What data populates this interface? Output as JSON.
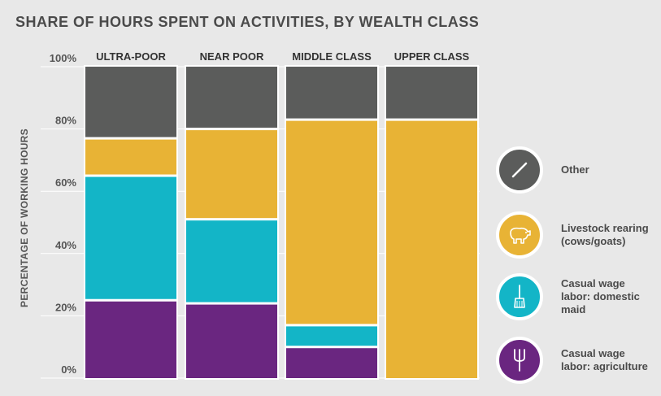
{
  "title": "SHARE OF HOURS SPENT ON ACTIVITIES, BY WEALTH CLASS",
  "colors": {
    "other": "#5b5c5b",
    "livestock": "#e8b335",
    "domestic": "#13b5c7",
    "agriculture": "#6a2680",
    "grid": "#ffffff"
  },
  "chart_data": {
    "type": "bar",
    "stacked": true,
    "categories": [
      "ULTRA-POOR",
      "NEAR POOR",
      "MIDDLE CLASS",
      "UPPER CLASS"
    ],
    "ylabel": "PERCENTAGE OF WORKING HOURS",
    "ylim": [
      0,
      100
    ],
    "yticks": [
      "0%",
      "20%",
      "40%",
      "60%",
      "80%",
      "100%"
    ],
    "series": [
      {
        "name": "Casual wage labor: agriculture",
        "key": "agriculture",
        "values": [
          25,
          24,
          10,
          0
        ]
      },
      {
        "name": "Casual wage labor: domestic maid",
        "key": "domestic",
        "values": [
          40,
          27,
          7,
          0
        ]
      },
      {
        "name": "Livestock rearing (cows/goats)",
        "key": "livestock",
        "values": [
          12,
          29,
          66,
          83
        ]
      },
      {
        "name": "Other",
        "key": "other",
        "values": [
          23,
          20,
          17,
          17
        ]
      }
    ],
    "legend_position": "right"
  },
  "legend": [
    {
      "label": "Other",
      "key": "other",
      "icon": "slash-icon"
    },
    {
      "label": "Livestock rearing (cows/goats)",
      "key": "livestock",
      "icon": "cow-icon"
    },
    {
      "label": "Casual wage labor: domestic maid",
      "key": "domestic",
      "icon": "broom-icon"
    },
    {
      "label": "Casual wage labor: agriculture",
      "key": "agriculture",
      "icon": "pitchfork-icon"
    }
  ]
}
